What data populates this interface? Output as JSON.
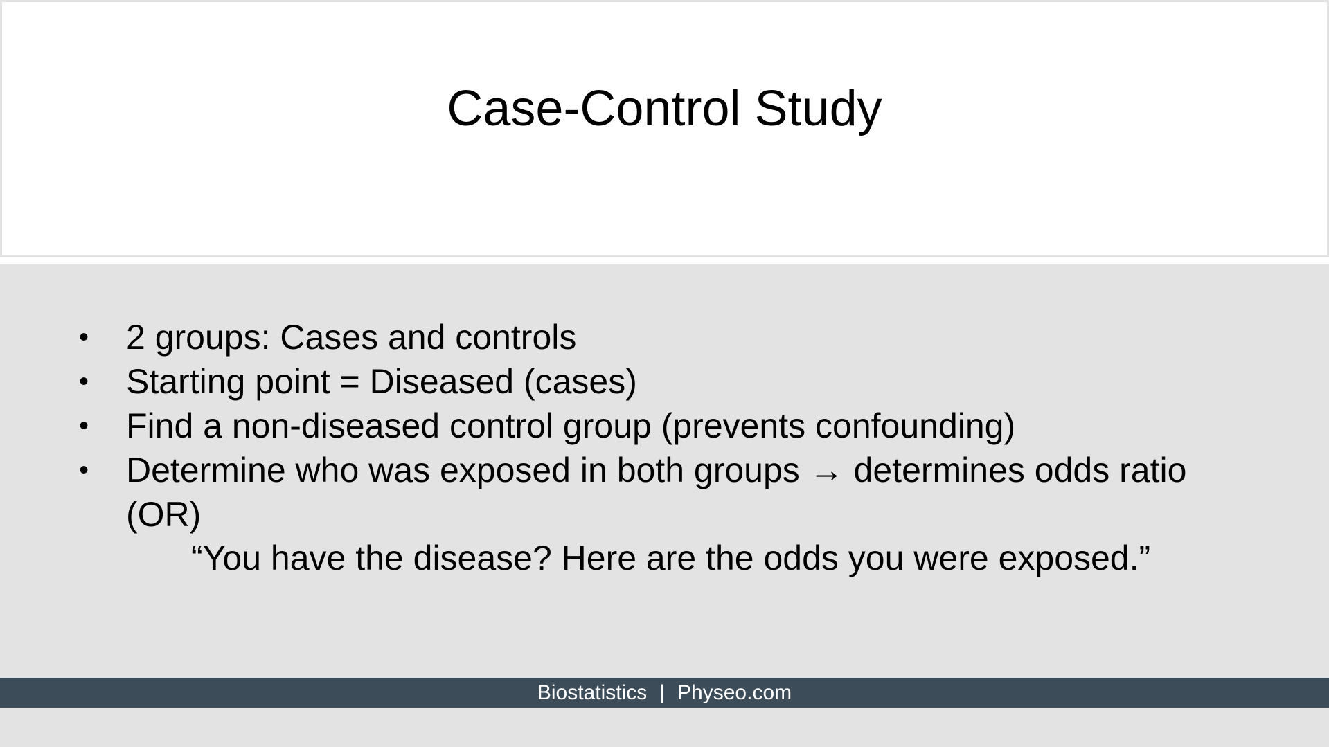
{
  "slide": {
    "title": "Case-Control Study",
    "bullets": [
      "2 groups: Cases and controls",
      "Starting point = Diseased (cases)",
      "Find a non-diseased control group (prevents confounding)",
      "Determine who was exposed in both groups → determines odds ratio (OR)"
    ],
    "quote": "“You have the disease? Here are the odds you were exposed.”",
    "bullet_symbol": "•"
  },
  "footer": {
    "left": "Biostatistics",
    "separator": "|",
    "right": "Physeo.com"
  },
  "colors": {
    "title_background": "#ffffff",
    "body_background": "#e3e3e3",
    "footer_background": "#3d4c59",
    "footer_text": "#ffffff",
    "text": "#000000"
  }
}
